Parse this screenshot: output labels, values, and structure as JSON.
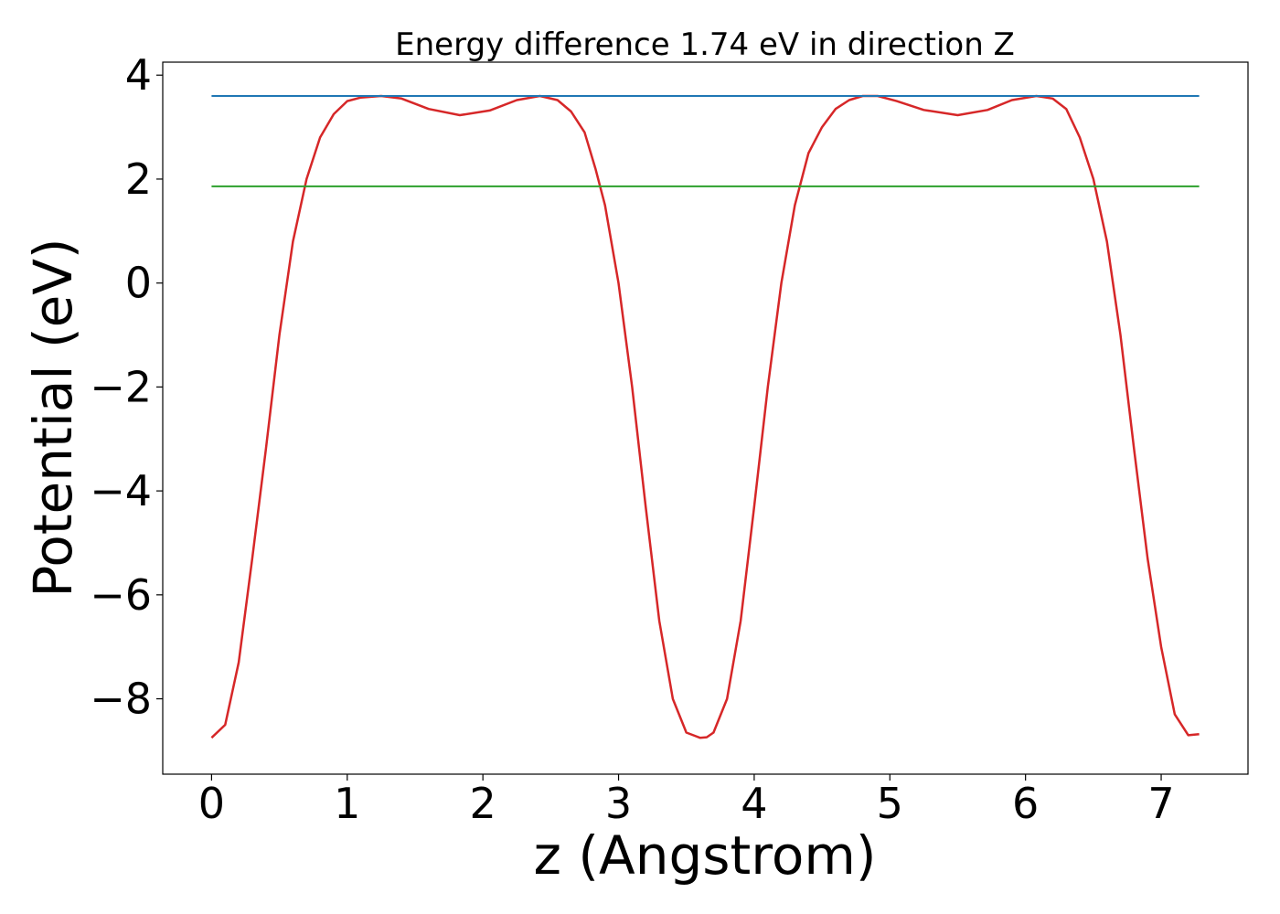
{
  "chart_data": {
    "type": "line",
    "title": "Energy difference 1.74 eV in direction Z",
    "xlabel": "z (Angstrom)",
    "ylabel": "Potential (eV)",
    "xlim": [
      -0.36,
      7.64
    ],
    "ylim": [
      -9.45,
      4.25
    ],
    "xticks": [
      0,
      1,
      2,
      3,
      4,
      5,
      6,
      7
    ],
    "yticks": [
      -8,
      -6,
      -4,
      -2,
      0,
      2,
      4
    ],
    "xtick_labels": [
      "0",
      "1",
      "2",
      "3",
      "4",
      "5",
      "6",
      "7"
    ],
    "ytick_labels": [
      "−8",
      "−6",
      "−4",
      "−2",
      "0",
      "2",
      "4"
    ],
    "grid": false,
    "series": [
      {
        "color": "#d62728",
        "x": [
          0.0,
          0.1,
          0.2,
          0.3,
          0.4,
          0.5,
          0.6,
          0.7,
          0.8,
          0.9,
          1.0,
          1.1,
          1.25,
          1.4,
          1.6,
          1.83,
          2.05,
          2.25,
          2.42,
          2.55,
          2.65,
          2.75,
          2.83,
          2.9,
          3.0,
          3.1,
          3.2,
          3.3,
          3.4,
          3.5,
          3.6,
          3.65,
          3.7,
          3.8,
          3.9,
          4.0,
          4.1,
          4.2,
          4.3,
          4.4,
          4.5,
          4.6,
          4.7,
          4.8,
          4.91,
          5.05,
          5.25,
          5.5,
          5.72,
          5.9,
          6.08,
          6.2,
          6.3,
          6.4,
          6.5,
          6.6,
          6.7,
          6.8,
          6.9,
          7.0,
          7.1,
          7.2,
          7.28
        ],
        "values": [
          -8.75,
          -8.5,
          -7.3,
          -5.3,
          -3.2,
          -1.0,
          0.8,
          2.0,
          2.8,
          3.25,
          3.5,
          3.57,
          3.6,
          3.55,
          3.35,
          3.23,
          3.32,
          3.52,
          3.6,
          3.52,
          3.3,
          2.9,
          2.2,
          1.5,
          0.0,
          -2.0,
          -4.3,
          -6.5,
          -8.0,
          -8.65,
          -8.75,
          -8.74,
          -8.65,
          -8.0,
          -6.5,
          -4.3,
          -2.0,
          0.0,
          1.5,
          2.5,
          3.0,
          3.35,
          3.52,
          3.6,
          3.6,
          3.5,
          3.33,
          3.23,
          3.33,
          3.52,
          3.6,
          3.55,
          3.35,
          2.8,
          2.0,
          0.8,
          -1.0,
          -3.2,
          -5.3,
          -7.0,
          -8.3,
          -8.7,
          -8.68
        ]
      },
      {
        "color": "#1f77b4",
        "x": [
          0.0,
          7.28
        ],
        "values": [
          3.6,
          3.6
        ]
      },
      {
        "color": "#2ca02c",
        "x": [
          0.0,
          7.28
        ],
        "values": [
          1.86,
          1.86
        ]
      }
    ]
  }
}
